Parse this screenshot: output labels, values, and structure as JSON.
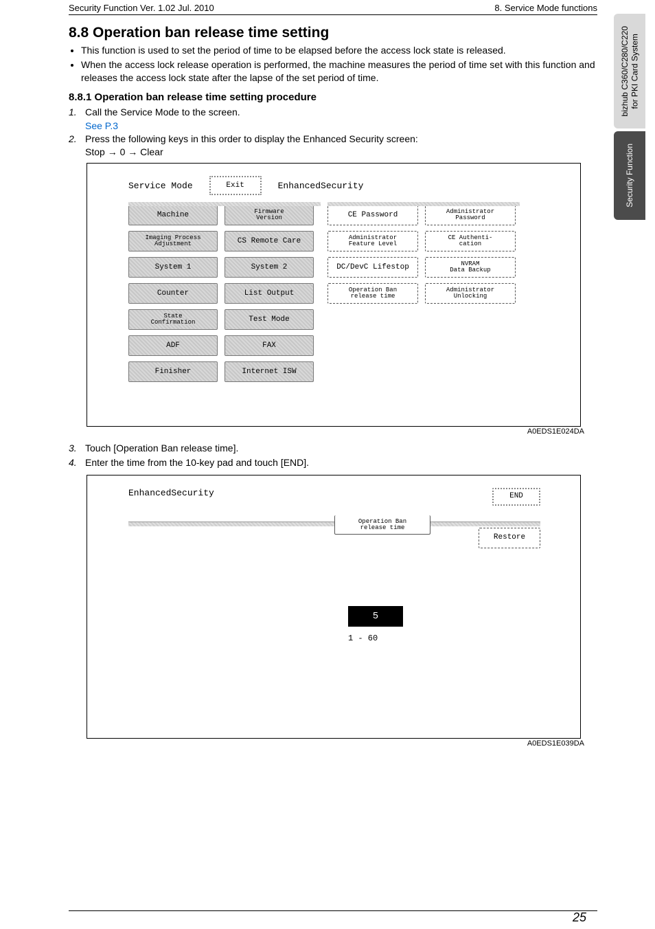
{
  "header": {
    "left": "Security Function Ver. 1.02 Jul. 2010",
    "right": "8. Service Mode functions"
  },
  "side": {
    "tab1_line1": "bizhub C360/C280/C220",
    "tab1_line2": "for PKI Card System",
    "tab2": "Security Function"
  },
  "s88": {
    "heading": "8.8    Operation ban release time setting",
    "b1": "This function is used to set the period of time to be elapsed before the access lock state is released.",
    "b2": "When the access lock release operation is performed, the machine measures the period of time set with this function and releases the access lock state after the lapse of the set period of time."
  },
  "s881": {
    "heading": "8.8.1      Operation ban release time setting procedure",
    "step1": "Call the Service Mode to the screen.",
    "link": "See P.3",
    "step2": "Press the following keys in this order to display the Enhanced Security screen:",
    "keys": "Stop → 0 → Clear",
    "step3": "Touch [Operation Ban release time].",
    "step4": "Enter the time from the 10-key pad and touch [END]."
  },
  "screen1": {
    "title": "Service Mode",
    "exit": "Exit",
    "mode": "EnhancedSecurity",
    "left": [
      "Machine",
      "Imaging Process\nAdjustment",
      "System 1",
      "Counter",
      "State\nConfirmation",
      "ADF",
      "Finisher"
    ],
    "left2": [
      "Firmware\nVersion",
      "CS Remote Care",
      "System 2",
      "List Output",
      "Test Mode",
      "FAX",
      "Internet ISW"
    ],
    "right1": [
      "CE Password",
      "Administrator\nFeature Level",
      "DC/DevC Lifestop",
      "Operation Ban\nrelease time"
    ],
    "right2": [
      "Administrator\nPassword",
      "CE Authenti-\ncation",
      "NVRAM\nData Backup",
      "Administrator\nUnlocking"
    ],
    "id": "A0EDS1E024DA"
  },
  "screen2": {
    "title": "EnhancedSecurity",
    "end": "END",
    "label": "Operation Ban\nrelease time",
    "restore": "Restore",
    "value": "5",
    "range": "1   -   60",
    "id": "A0EDS1E039DA"
  },
  "pagenum": "25"
}
